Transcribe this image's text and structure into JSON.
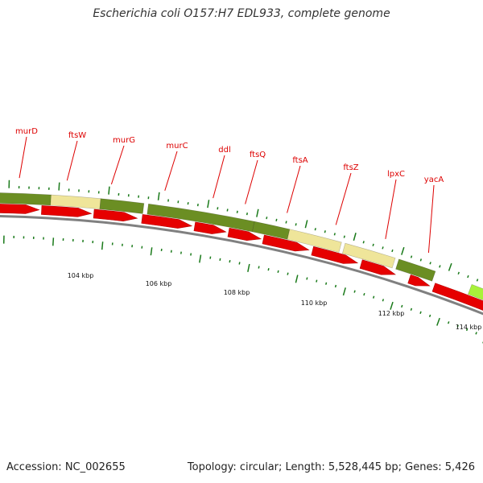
{
  "title": "Escherichia coli O157:H7 EDL933, complete genome",
  "footer": {
    "accession": "Accession: NC_002655",
    "stats": "Topology: circular; Length: 5,528,445 bp; Genes: 5,426"
  },
  "colors": {
    "cds_forward": "#e60000",
    "feature_dark": "#6b8e23",
    "feature_light": "#efe59a",
    "feature_bright": "#a8f23a",
    "backbone": "#808080",
    "tick": "#1a7a1a",
    "gene_label": "#dd0000"
  },
  "genes": [
    "murD",
    "ftsW",
    "murG",
    "murC",
    "ddl",
    "ftsQ",
    "ftsA",
    "ftsZ",
    "lpxC",
    "yacA"
  ],
  "scale_labels": [
    "104 kbp",
    "106 kbp",
    "108 kbp",
    "110 kbp",
    "112 kbp",
    "114 kbp"
  ]
}
